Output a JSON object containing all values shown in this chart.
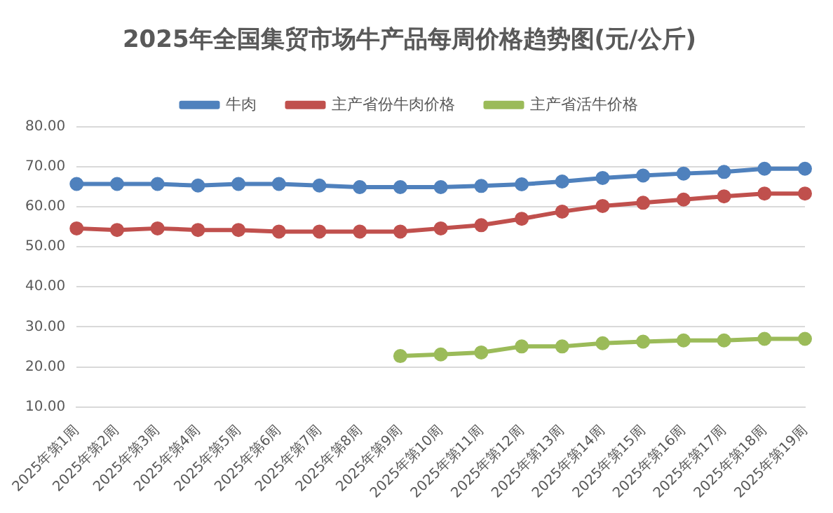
{
  "chart_data": {
    "type": "line",
    "title": "2025年全国集贸市场牛产品每周价格趋势图(元/公斤)",
    "categories": [
      "2025年第1周",
      "2025年第2周",
      "2025年第3周",
      "2025年第4周",
      "2025年第5周",
      "2025年第6周",
      "2025年第7周",
      "2025年第8周",
      "2025年第9周",
      "2025年第10周",
      "2025年第11周",
      "2025年第12周",
      "2025年第13周",
      "2025年第14周",
      "2025年第15周",
      "2025年第16周",
      "2025年第17周",
      "2025年第18周",
      "2025年第19周"
    ],
    "series": [
      {
        "name": "牛肉",
        "color": "#4f81bd",
        "values": [
          65.7,
          65.7,
          65.7,
          65.3,
          65.7,
          65.7,
          65.3,
          64.9,
          64.9,
          64.9,
          65.2,
          65.6,
          66.3,
          67.2,
          67.8,
          68.3,
          68.7,
          69.5,
          69.5
        ]
      },
      {
        "name": "主产省份牛肉价格",
        "color": "#c0504d",
        "values": [
          54.6,
          54.2,
          54.6,
          54.2,
          54.2,
          53.8,
          53.8,
          53.8,
          53.8,
          54.6,
          55.4,
          57.0,
          58.8,
          60.2,
          61.0,
          61.8,
          62.6,
          63.3,
          63.3
        ]
      },
      {
        "name": "主产省活牛价格",
        "color": "#9bbb59",
        "values": [
          null,
          null,
          null,
          null,
          null,
          null,
          null,
          null,
          22.7,
          23.1,
          23.6,
          25.1,
          25.1,
          25.9,
          26.3,
          26.6,
          26.6,
          27.0,
          27.0
        ]
      }
    ],
    "ylim": [
      10,
      80
    ],
    "yticks": [
      {
        "value": 10,
        "label": "10.00"
      },
      {
        "value": 20,
        "label": "20.00"
      },
      {
        "value": 30,
        "label": "30.00"
      },
      {
        "value": 40,
        "label": "40.00"
      },
      {
        "value": 50,
        "label": "50.00"
      },
      {
        "value": 60,
        "label": "60.00"
      },
      {
        "value": 70,
        "label": "70.00"
      },
      {
        "value": 80,
        "label": "80.00"
      }
    ],
    "grid": "y",
    "legend": "top",
    "marker": "circle",
    "line_style": "solid"
  }
}
